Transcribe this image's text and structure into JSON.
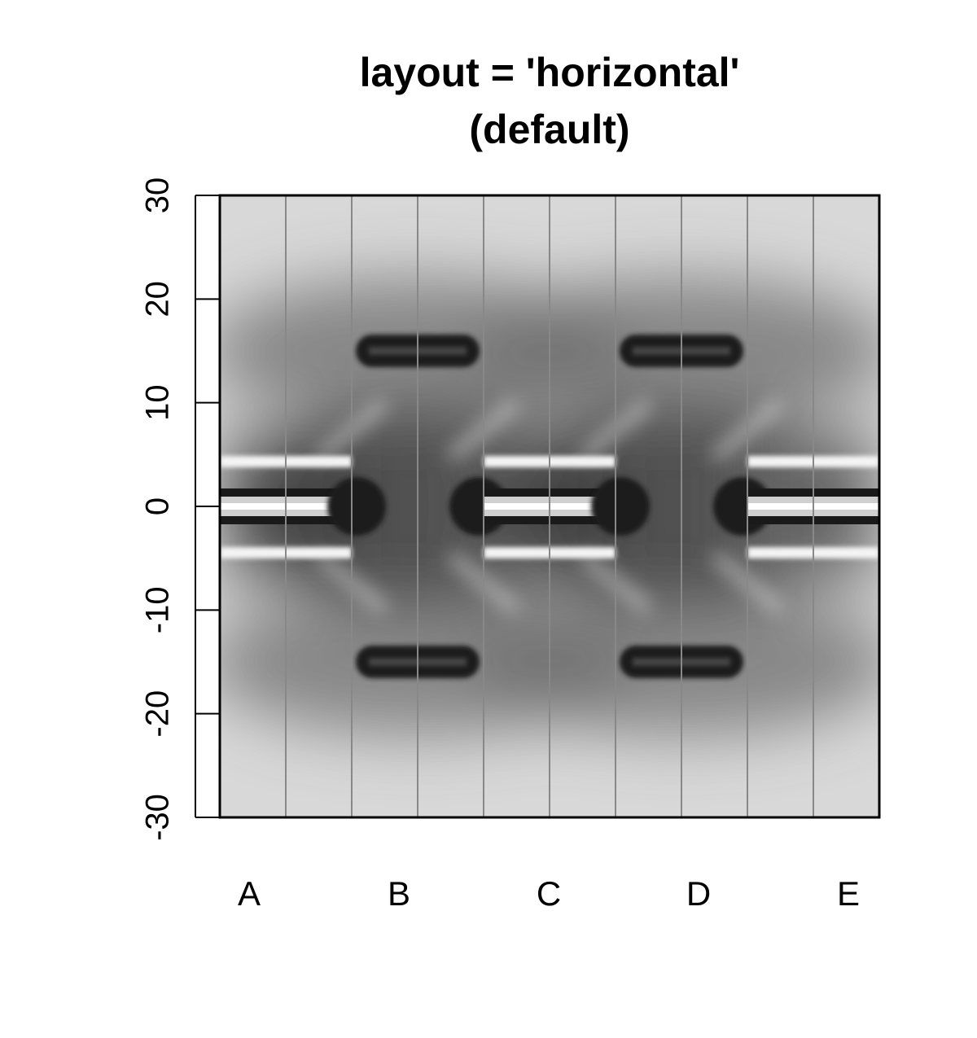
{
  "chart_data": {
    "type": "heatmap",
    "title": [
      "layout = 'horizontal'",
      "(default)"
    ],
    "categories": [
      "A",
      "B",
      "C",
      "D",
      "E"
    ],
    "ylim": [
      -30,
      30
    ],
    "yticks": [
      -30,
      -20,
      -10,
      0,
      10,
      20,
      30
    ],
    "grid": false,
    "legend": "none",
    "colors": {
      "background": "#ffffff",
      "light": "#d8d8d8",
      "dark": "#1a1a1a",
      "separator": "#888888",
      "axis": "#000000"
    },
    "bands": [
      {
        "category": "A",
        "center": 0,
        "style": "light-core"
      },
      {
        "category": "B",
        "center": 15,
        "style": "dark-bar"
      },
      {
        "category": "B",
        "center": -15,
        "style": "dark-bar"
      },
      {
        "category": "B",
        "center": 0,
        "style": "dark-blob"
      },
      {
        "category": "C",
        "center": 0,
        "style": "light-core"
      },
      {
        "category": "D",
        "center": 15,
        "style": "dark-bar"
      },
      {
        "category": "D",
        "center": -15,
        "style": "dark-bar"
      },
      {
        "category": "D",
        "center": 0,
        "style": "dark-blob"
      },
      {
        "category": "E",
        "center": 0,
        "style": "light-core"
      }
    ]
  }
}
